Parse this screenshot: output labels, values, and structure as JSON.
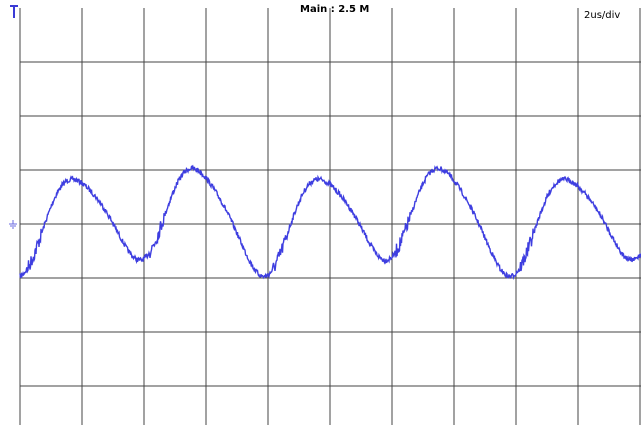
{
  "header": {
    "timebase": "Main : 2.5 M",
    "scale": "2us/div"
  }
}
